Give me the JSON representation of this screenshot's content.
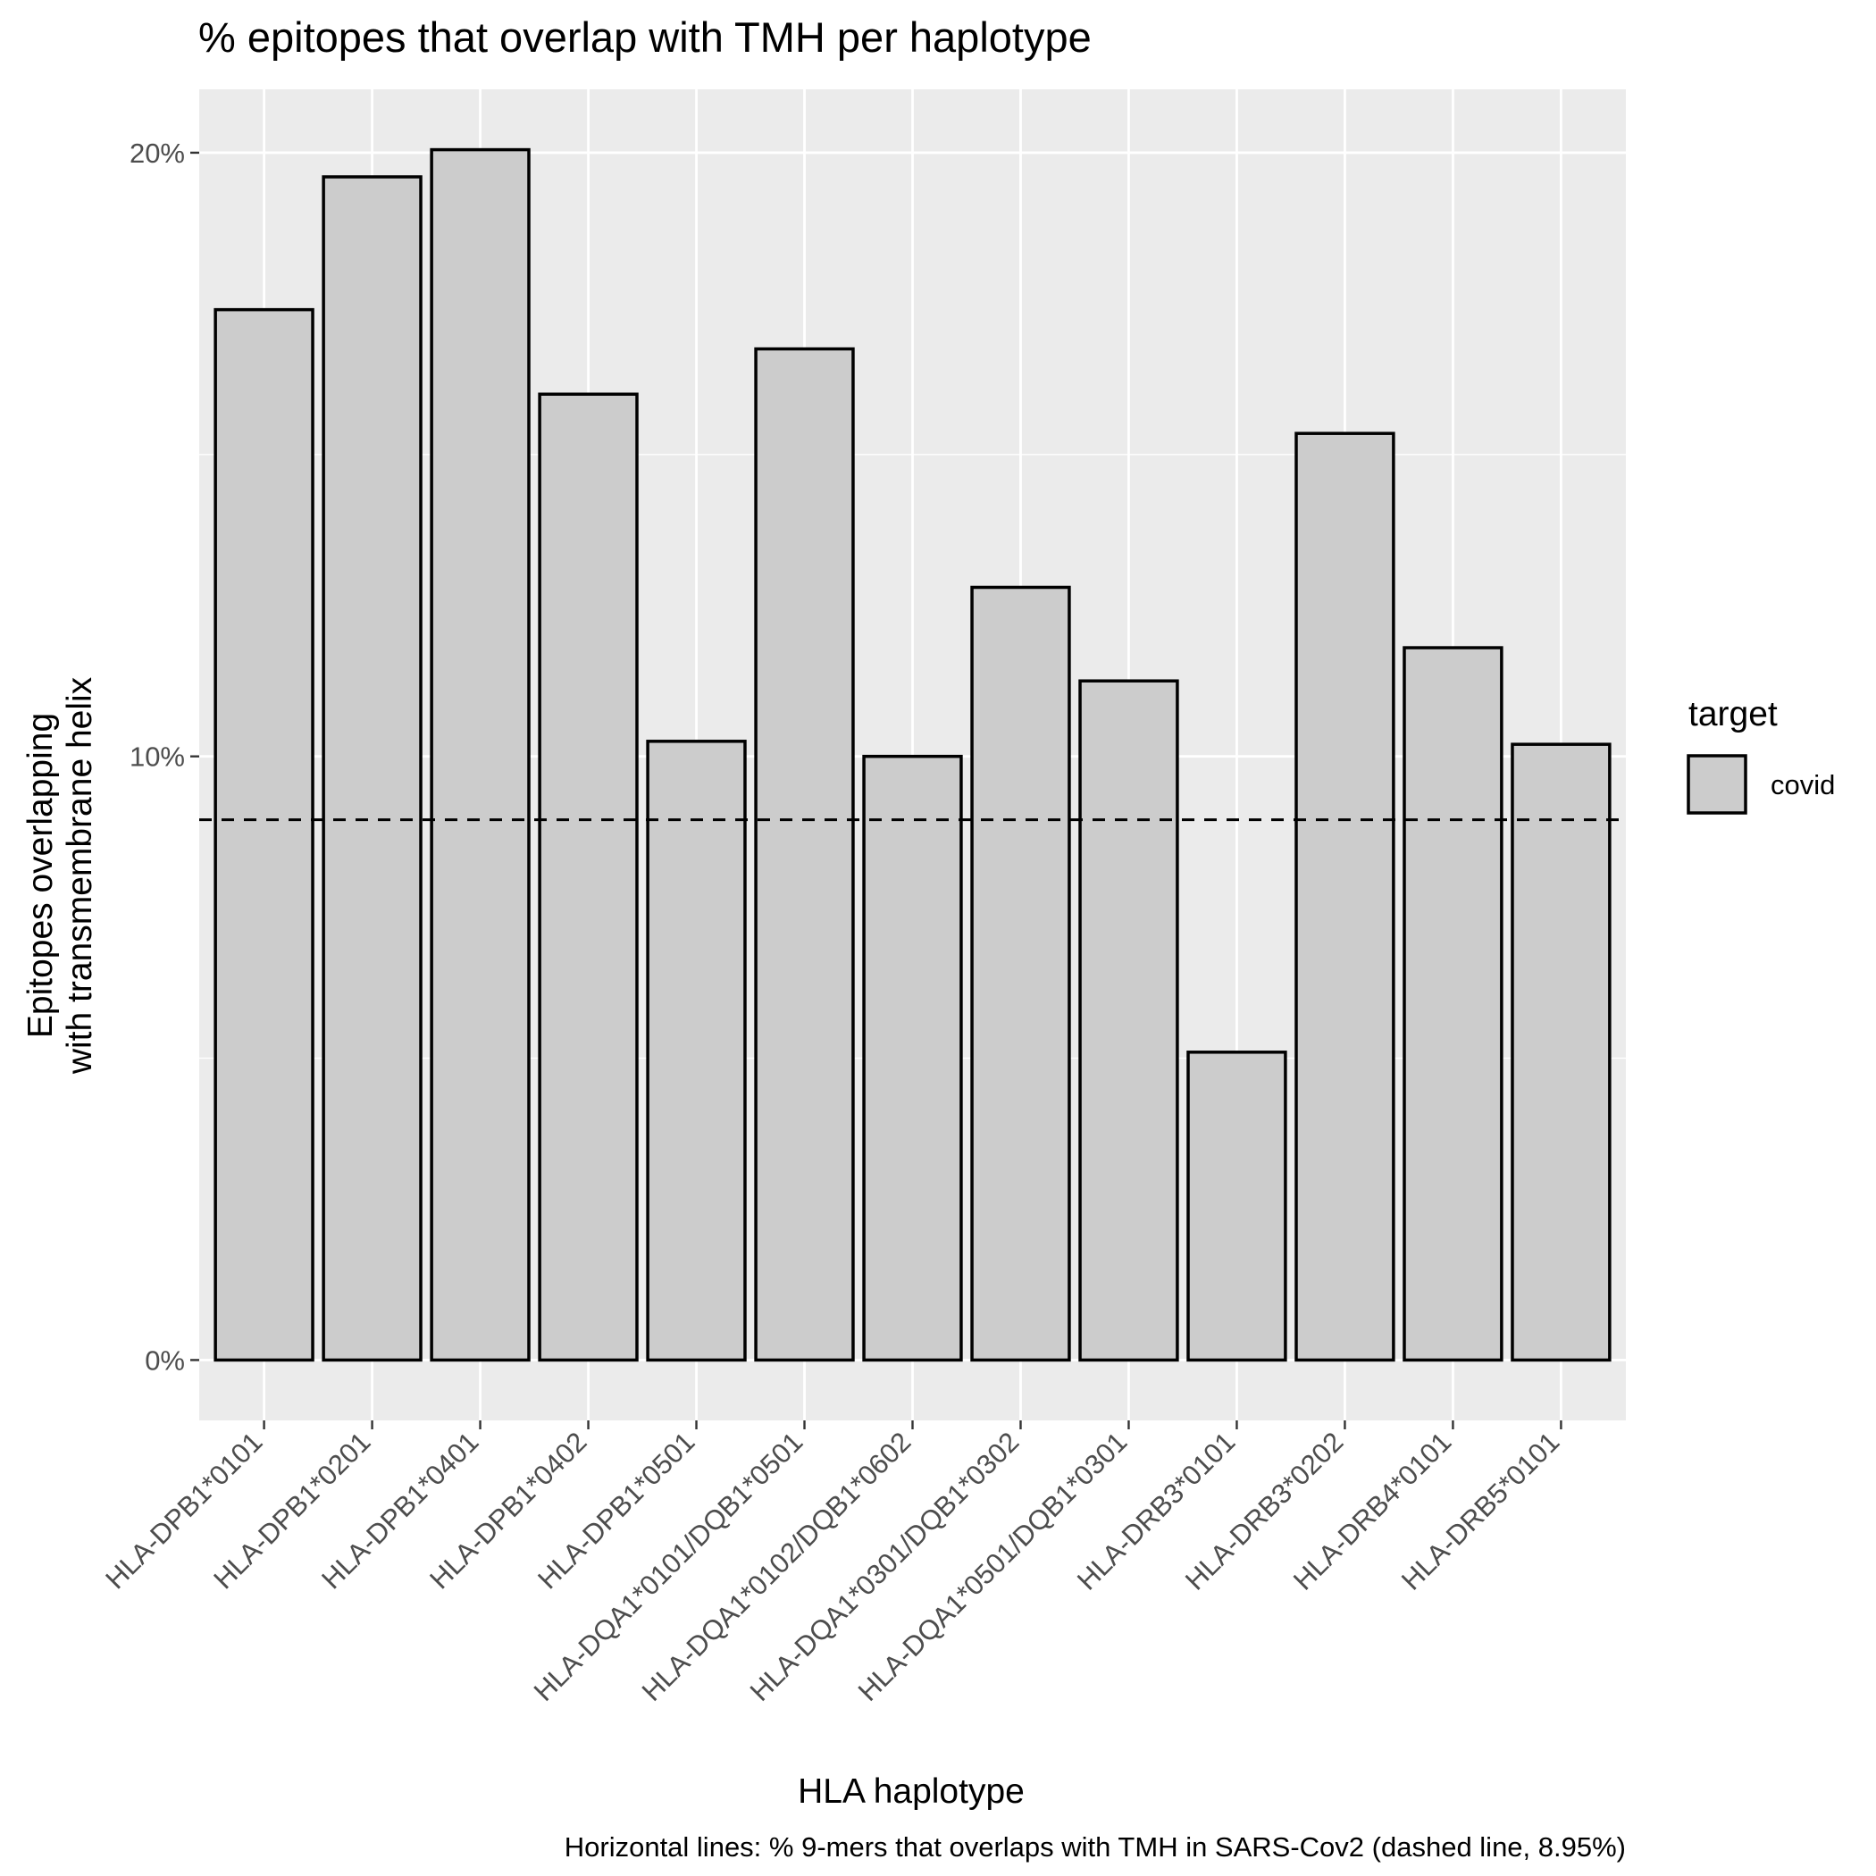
{
  "chart_data": {
    "type": "bar",
    "title": "% epitopes that overlap with TMH per haplotype",
    "xlabel": "HLA haplotype",
    "ylabel_lines": [
      "Epitopes overlapping",
      "with transmembrane helix"
    ],
    "categories": [
      "HLA-DPB1*0101",
      "HLA-DPB1*0201",
      "HLA-DPB1*0401",
      "HLA-DPB1*0402",
      "HLA-DPB1*0501",
      "HLA-DQA1*0101/DQB1*0501",
      "HLA-DQA1*0102/DQB1*0602",
      "HLA-DQA1*0301/DQB1*0302",
      "HLA-DQA1*0501/DQB1*0301",
      "HLA-DRB3*0101",
      "HLA-DRB3*0202",
      "HLA-DRB4*0101",
      "HLA-DRB5*0101"
    ],
    "series": [
      {
        "name": "covid",
        "values": [
          17.4,
          19.6,
          20.05,
          16.0,
          10.25,
          16.75,
          10.0,
          12.8,
          11.25,
          5.1,
          15.35,
          11.8,
          10.2
        ]
      }
    ],
    "reference_line": {
      "value": 8.95,
      "style": "dashed"
    },
    "ylim": [
      -1.0,
      21.05
    ],
    "yticks": [
      0,
      10,
      20
    ],
    "ytick_labels": [
      "0%",
      "10%",
      "20%"
    ],
    "legend": {
      "title": "target",
      "position": "right"
    },
    "caption": "Horizontal lines: % 9-mers that overlaps with TMH in SARS-Cov2 (dashed line, 8.95%)",
    "colors": {
      "panel_background": "#ebebeb",
      "grid": "#ffffff",
      "bar_fill": "#cccccc",
      "bar_outline": "#000000",
      "tick_text": "#4d4d4d"
    },
    "grid": true
  }
}
